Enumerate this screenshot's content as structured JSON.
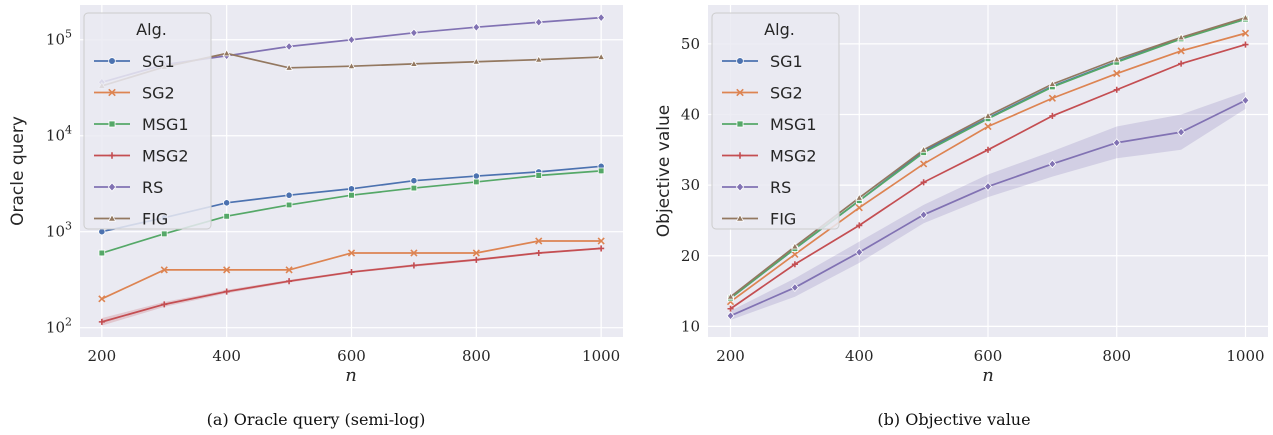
{
  "chart_data": [
    {
      "type": "line",
      "caption": "(a) Oracle query (semi-log)",
      "ylabel": "Oracle query",
      "xlabel": "n",
      "yscale": "log",
      "xlim": [
        165,
        1035
      ],
      "ylim": [
        80,
        230000
      ],
      "xticks": [
        "200",
        "400",
        "600",
        "800",
        "1000"
      ],
      "yticks": [
        "10^2",
        "10^3",
        "10^4",
        "10^5"
      ],
      "legend_title": "Alg.",
      "legend": "top-left",
      "grid": true,
      "x": [
        200,
        300,
        400,
        500,
        600,
        700,
        800,
        900,
        1000
      ],
      "series": [
        {
          "name": "SG1",
          "color": "#4c72b0",
          "marker": "circle",
          "values": [
            1000,
            1400,
            2000,
            2400,
            2800,
            3400,
            3800,
            4200,
            4800
          ]
        },
        {
          "name": "SG2",
          "color": "#dd8452",
          "marker": "x",
          "values": [
            200,
            400,
            400,
            400,
            600,
            600,
            600,
            800,
            800
          ]
        },
        {
          "name": "MSG1",
          "color": "#55a868",
          "marker": "square",
          "values": [
            600,
            950,
            1450,
            1900,
            2400,
            2850,
            3300,
            3850,
            4300
          ]
        },
        {
          "name": "MSG2",
          "color": "#c44e52",
          "marker": "plus",
          "values": [
            115,
            175,
            238,
            305,
            380,
            445,
            510,
            600,
            670
          ],
          "band": [
            [
              105,
              126
            ],
            [
              165,
              185
            ],
            [
              228,
              248
            ],
            [
              295,
              315
            ],
            [
              370,
              390
            ],
            [
              432,
              458
            ],
            [
              495,
              525
            ],
            [
              585,
              615
            ],
            [
              655,
              685
            ]
          ]
        },
        {
          "name": "RS",
          "color": "#8172b3",
          "marker": "diamond",
          "values": [
            36000,
            55000,
            68000,
            85000,
            100000,
            118000,
            135000,
            152000,
            170000
          ]
        },
        {
          "name": "FIG",
          "color": "#937860",
          "marker": "triangle",
          "values": [
            33000,
            52000,
            72000,
            51000,
            53000,
            56000,
            59000,
            62000,
            66000
          ]
        }
      ]
    },
    {
      "type": "line",
      "caption": "(b) Objective value",
      "ylabel": "Objective value",
      "xlabel": "n",
      "yscale": "linear",
      "xlim": [
        165,
        1035
      ],
      "ylim": [
        8.5,
        55.5
      ],
      "xticks": [
        "200",
        "400",
        "600",
        "800",
        "1000"
      ],
      "yticks": [
        "10",
        "20",
        "30",
        "40",
        "50"
      ],
      "legend_title": "Alg.",
      "legend": "top-left",
      "grid": true,
      "x": [
        200,
        300,
        400,
        500,
        600,
        700,
        800,
        900,
        1000
      ],
      "series": [
        {
          "name": "SG1",
          "color": "#4c72b0",
          "marker": "circle",
          "values": [
            14.0,
            21.0,
            27.8,
            34.8,
            39.5,
            44.0,
            47.5,
            50.8,
            53.5
          ]
        },
        {
          "name": "SG2",
          "color": "#dd8452",
          "marker": "x",
          "values": [
            13.5,
            20.2,
            26.8,
            33.0,
            38.3,
            42.3,
            45.8,
            49.0,
            51.5
          ]
        },
        {
          "name": "MSG1",
          "color": "#55a868",
          "marker": "square",
          "values": [
            14.0,
            21.0,
            27.8,
            34.6,
            39.4,
            43.9,
            47.4,
            50.7,
            53.5
          ]
        },
        {
          "name": "MSG2",
          "color": "#c44e52",
          "marker": "plus",
          "values": [
            12.5,
            18.8,
            24.3,
            30.4,
            35.0,
            39.8,
            43.5,
            47.2,
            49.9
          ]
        },
        {
          "name": "RS",
          "color": "#8172b3",
          "marker": "diamond",
          "values": [
            11.5,
            15.5,
            20.5,
            25.8,
            29.8,
            33.0,
            36.0,
            37.5,
            42.0
          ],
          "band": [
            [
              10.9,
              12.2
            ],
            [
              14.2,
              16.8
            ],
            [
              19.0,
              22.0
            ],
            [
              24.6,
              27.2
            ],
            [
              28.3,
              31.5
            ],
            [
              31.2,
              34.8
            ],
            [
              33.8,
              38.3
            ],
            [
              35.0,
              40.0
            ],
            [
              40.8,
              43.2
            ]
          ]
        },
        {
          "name": "FIG",
          "color": "#937860",
          "marker": "triangle",
          "values": [
            14.2,
            21.3,
            28.2,
            35.0,
            39.8,
            44.3,
            47.8,
            50.9,
            53.7
          ]
        }
      ]
    }
  ]
}
